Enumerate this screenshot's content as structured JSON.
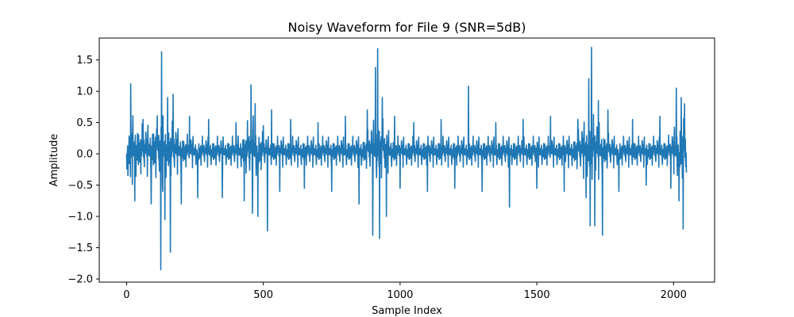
{
  "chart_data": {
    "type": "line",
    "title": "Noisy Waveform for File 9 (SNR=5dB)",
    "xlabel": "Sample Index",
    "ylabel": "Amplitude",
    "xlim": [
      -100,
      2150
    ],
    "ylim": [
      -2.05,
      1.85
    ],
    "xticks": [
      0,
      500,
      1000,
      1500,
      2000
    ],
    "xtick_labels": [
      "0",
      "500",
      "1000",
      "1500",
      "2000"
    ],
    "yticks": [
      -2.0,
      -1.5,
      -1.0,
      -0.5,
      0.0,
      0.5,
      1.0,
      1.5
    ],
    "ytick_labels": [
      "−2.0",
      "−1.5",
      "−1.0",
      "−0.5",
      "0.0",
      "0.5",
      "1.0",
      "1.5"
    ],
    "grid": false,
    "series": [
      {
        "color": "#1f77b4",
        "n_samples": 2048,
        "x": [
          0,
          15,
          30,
          60,
          90,
          110,
          125,
          128,
          132,
          140,
          150,
          160,
          170,
          200,
          230,
          260,
          300,
          350,
          400,
          430,
          455,
          460,
          470,
          480,
          500,
          515,
          530,
          560,
          600,
          650,
          700,
          750,
          800,
          850,
          880,
          900,
          910,
          918,
          925,
          935,
          950,
          980,
          1000,
          1050,
          1100,
          1150,
          1200,
          1250,
          1300,
          1350,
          1400,
          1450,
          1500,
          1550,
          1600,
          1650,
          1680,
          1690,
          1695,
          1700,
          1712,
          1725,
          1740,
          1760,
          1800,
          1850,
          1900,
          1950,
          1990,
          2010,
          2020,
          2028,
          2035,
          2040,
          2047
        ],
        "y": [
          0.0,
          1.12,
          -0.75,
          0.55,
          -0.8,
          0.4,
          -1.85,
          1.63,
          -0.6,
          -1.05,
          0.9,
          -1.57,
          0.95,
          -0.8,
          0.6,
          -0.7,
          0.55,
          -0.7,
          0.5,
          -0.75,
          1.1,
          -0.95,
          0.8,
          -1.0,
          0.45,
          -1.23,
          0.7,
          -0.6,
          0.55,
          -0.55,
          0.5,
          -0.6,
          0.6,
          -0.8,
          0.7,
          -1.3,
          1.38,
          1.68,
          -1.35,
          0.9,
          -1.0,
          0.6,
          -0.55,
          0.5,
          -0.6,
          0.55,
          -0.55,
          1.08,
          -0.6,
          0.5,
          -0.85,
          0.55,
          -0.55,
          0.6,
          -0.6,
          0.55,
          -0.7,
          1.2,
          -1.15,
          1.7,
          -1.15,
          0.85,
          -1.3,
          0.7,
          -0.6,
          0.55,
          -0.5,
          0.6,
          -0.55,
          1.05,
          -0.75,
          0.9,
          -1.2,
          0.8,
          -0.3
        ]
      }
    ]
  }
}
